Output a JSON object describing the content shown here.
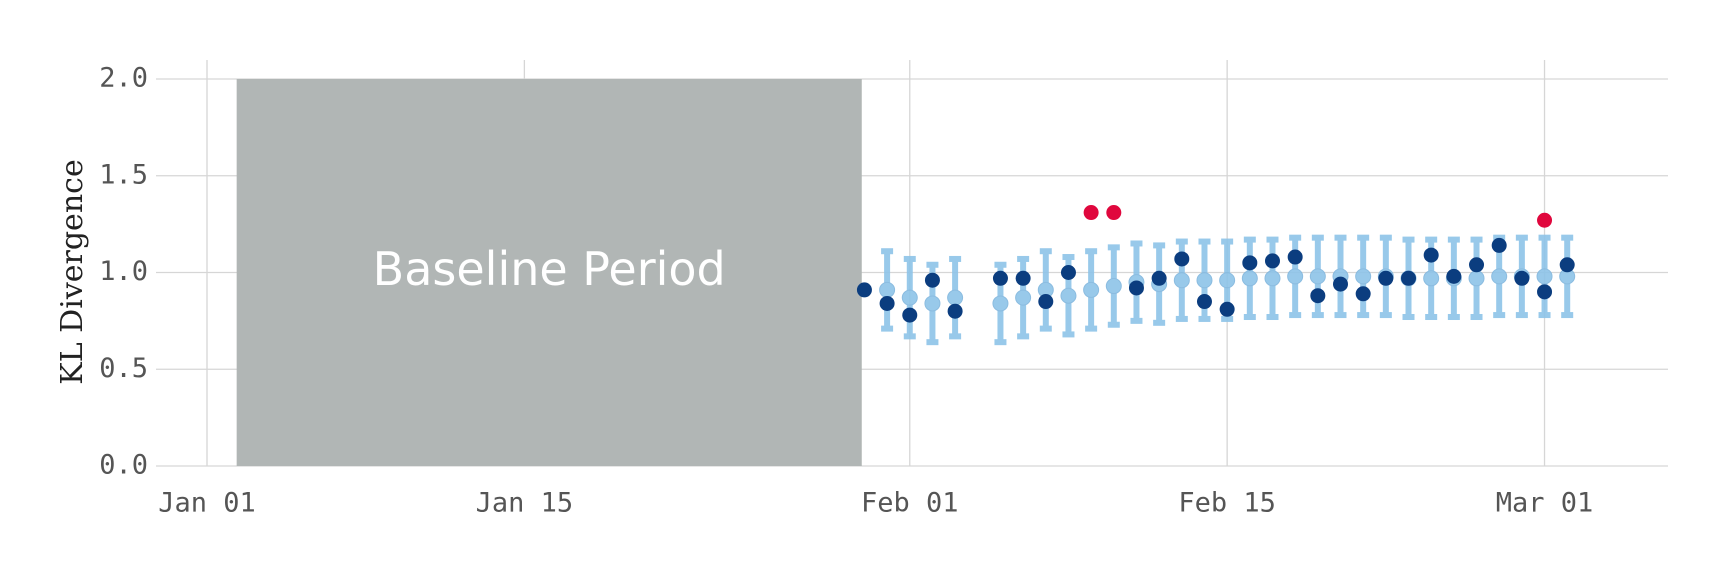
{
  "chart_data": {
    "type": "scatter",
    "title": "",
    "xlabel": "",
    "ylabel": "KL Divergence",
    "x_axis": {
      "type": "date",
      "range": [
        "2021-01-01",
        "2021-03-05"
      ],
      "ticks": [
        {
          "date": "2021-01-01",
          "label": "Jan 01"
        },
        {
          "date": "2021-01-15",
          "label": "Jan 15"
        },
        {
          "date": "2021-02-01",
          "label": "Feb 01"
        },
        {
          "date": "2021-02-15",
          "label": "Feb 15"
        },
        {
          "date": "2021-03-01",
          "label": "Mar 01"
        }
      ]
    },
    "y_axis": {
      "range": [
        0,
        2.0
      ],
      "ticks": [
        {
          "value": 0.0,
          "label": "0.0"
        },
        {
          "value": 0.5,
          "label": "0.5"
        },
        {
          "value": 1.0,
          "label": "1.0"
        },
        {
          "value": 1.5,
          "label": "1.5"
        },
        {
          "value": 2.0,
          "label": "2.0"
        }
      ]
    },
    "grid": true,
    "legend": "none",
    "baseline_band": {
      "label": "Baseline Period",
      "start": "2021-01-02",
      "end": "2021-01-29",
      "y_range": [
        0,
        2.0
      ],
      "color": "#b1b6b5"
    },
    "colors": {
      "observed": "#0b3d7f",
      "anomaly": "#e0073d",
      "expected": "#8dc4e8"
    },
    "expected_intervals": [
      {
        "date": "2021-01-31",
        "mean": 0.91,
        "lower": 0.71,
        "upper": 1.11
      },
      {
        "date": "2021-02-01",
        "mean": 0.87,
        "lower": 0.67,
        "upper": 1.07
      },
      {
        "date": "2021-02-02",
        "mean": 0.84,
        "lower": 0.64,
        "upper": 1.04
      },
      {
        "date": "2021-02-03",
        "mean": 0.87,
        "lower": 0.67,
        "upper": 1.07
      },
      {
        "date": "2021-02-05",
        "mean": 0.84,
        "lower": 0.64,
        "upper": 1.04
      },
      {
        "date": "2021-02-06",
        "mean": 0.87,
        "lower": 0.67,
        "upper": 1.07
      },
      {
        "date": "2021-02-07",
        "mean": 0.91,
        "lower": 0.71,
        "upper": 1.11
      },
      {
        "date": "2021-02-08",
        "mean": 0.88,
        "lower": 0.68,
        "upper": 1.08
      },
      {
        "date": "2021-02-09",
        "mean": 0.91,
        "lower": 0.71,
        "upper": 1.11
      },
      {
        "date": "2021-02-10",
        "mean": 0.93,
        "lower": 0.73,
        "upper": 1.13
      },
      {
        "date": "2021-02-11",
        "mean": 0.95,
        "lower": 0.75,
        "upper": 1.15
      },
      {
        "date": "2021-02-12",
        "mean": 0.94,
        "lower": 0.74,
        "upper": 1.14
      },
      {
        "date": "2021-02-13",
        "mean": 0.96,
        "lower": 0.76,
        "upper": 1.16
      },
      {
        "date": "2021-02-14",
        "mean": 0.96,
        "lower": 0.76,
        "upper": 1.16
      },
      {
        "date": "2021-02-15",
        "mean": 0.96,
        "lower": 0.76,
        "upper": 1.16
      },
      {
        "date": "2021-02-16",
        "mean": 0.97,
        "lower": 0.77,
        "upper": 1.17
      },
      {
        "date": "2021-02-17",
        "mean": 0.97,
        "lower": 0.77,
        "upper": 1.17
      },
      {
        "date": "2021-02-18",
        "mean": 0.98,
        "lower": 0.78,
        "upper": 1.18
      },
      {
        "date": "2021-02-19",
        "mean": 0.98,
        "lower": 0.78,
        "upper": 1.18
      },
      {
        "date": "2021-02-20",
        "mean": 0.98,
        "lower": 0.78,
        "upper": 1.18
      },
      {
        "date": "2021-02-21",
        "mean": 0.98,
        "lower": 0.78,
        "upper": 1.18
      },
      {
        "date": "2021-02-22",
        "mean": 0.98,
        "lower": 0.78,
        "upper": 1.18
      },
      {
        "date": "2021-02-23",
        "mean": 0.97,
        "lower": 0.77,
        "upper": 1.17
      },
      {
        "date": "2021-02-24",
        "mean": 0.97,
        "lower": 0.77,
        "upper": 1.17
      },
      {
        "date": "2021-02-25",
        "mean": 0.97,
        "lower": 0.77,
        "upper": 1.17
      },
      {
        "date": "2021-02-26",
        "mean": 0.97,
        "lower": 0.77,
        "upper": 1.17
      },
      {
        "date": "2021-02-27",
        "mean": 0.98,
        "lower": 0.78,
        "upper": 1.18
      },
      {
        "date": "2021-02-28",
        "mean": 0.98,
        "lower": 0.78,
        "upper": 1.18
      },
      {
        "date": "2021-03-01",
        "mean": 0.98,
        "lower": 0.78,
        "upper": 1.18
      },
      {
        "date": "2021-03-02",
        "mean": 0.98,
        "lower": 0.78,
        "upper": 1.18
      }
    ],
    "observed": [
      {
        "date": "2021-01-30",
        "value": 0.91
      },
      {
        "date": "2021-01-31",
        "value": 0.84
      },
      {
        "date": "2021-02-01",
        "value": 0.78
      },
      {
        "date": "2021-02-02",
        "value": 0.96
      },
      {
        "date": "2021-02-03",
        "value": 0.8
      },
      {
        "date": "2021-02-05",
        "value": 0.97
      },
      {
        "date": "2021-02-06",
        "value": 0.97
      },
      {
        "date": "2021-02-07",
        "value": 0.85
      },
      {
        "date": "2021-02-08",
        "value": 1.0
      },
      {
        "date": "2021-02-11",
        "value": 0.92
      },
      {
        "date": "2021-02-12",
        "value": 0.97
      },
      {
        "date": "2021-02-13",
        "value": 1.07
      },
      {
        "date": "2021-02-14",
        "value": 0.85
      },
      {
        "date": "2021-02-15",
        "value": 0.81
      },
      {
        "date": "2021-02-16",
        "value": 1.05
      },
      {
        "date": "2021-02-17",
        "value": 1.06
      },
      {
        "date": "2021-02-18",
        "value": 1.08
      },
      {
        "date": "2021-02-19",
        "value": 0.88
      },
      {
        "date": "2021-02-20",
        "value": 0.94
      },
      {
        "date": "2021-02-21",
        "value": 0.89
      },
      {
        "date": "2021-02-22",
        "value": 0.97
      },
      {
        "date": "2021-02-23",
        "value": 0.97
      },
      {
        "date": "2021-02-24",
        "value": 1.09
      },
      {
        "date": "2021-02-25",
        "value": 0.98
      },
      {
        "date": "2021-02-26",
        "value": 1.04
      },
      {
        "date": "2021-02-27",
        "value": 1.14
      },
      {
        "date": "2021-02-28",
        "value": 0.97
      },
      {
        "date": "2021-03-01",
        "value": 0.9
      },
      {
        "date": "2021-03-02",
        "value": 1.04
      }
    ],
    "anomalies": [
      {
        "date": "2021-02-09",
        "value": 1.31
      },
      {
        "date": "2021-02-10",
        "value": 1.31
      },
      {
        "date": "2021-03-01",
        "value": 1.27
      }
    ]
  }
}
